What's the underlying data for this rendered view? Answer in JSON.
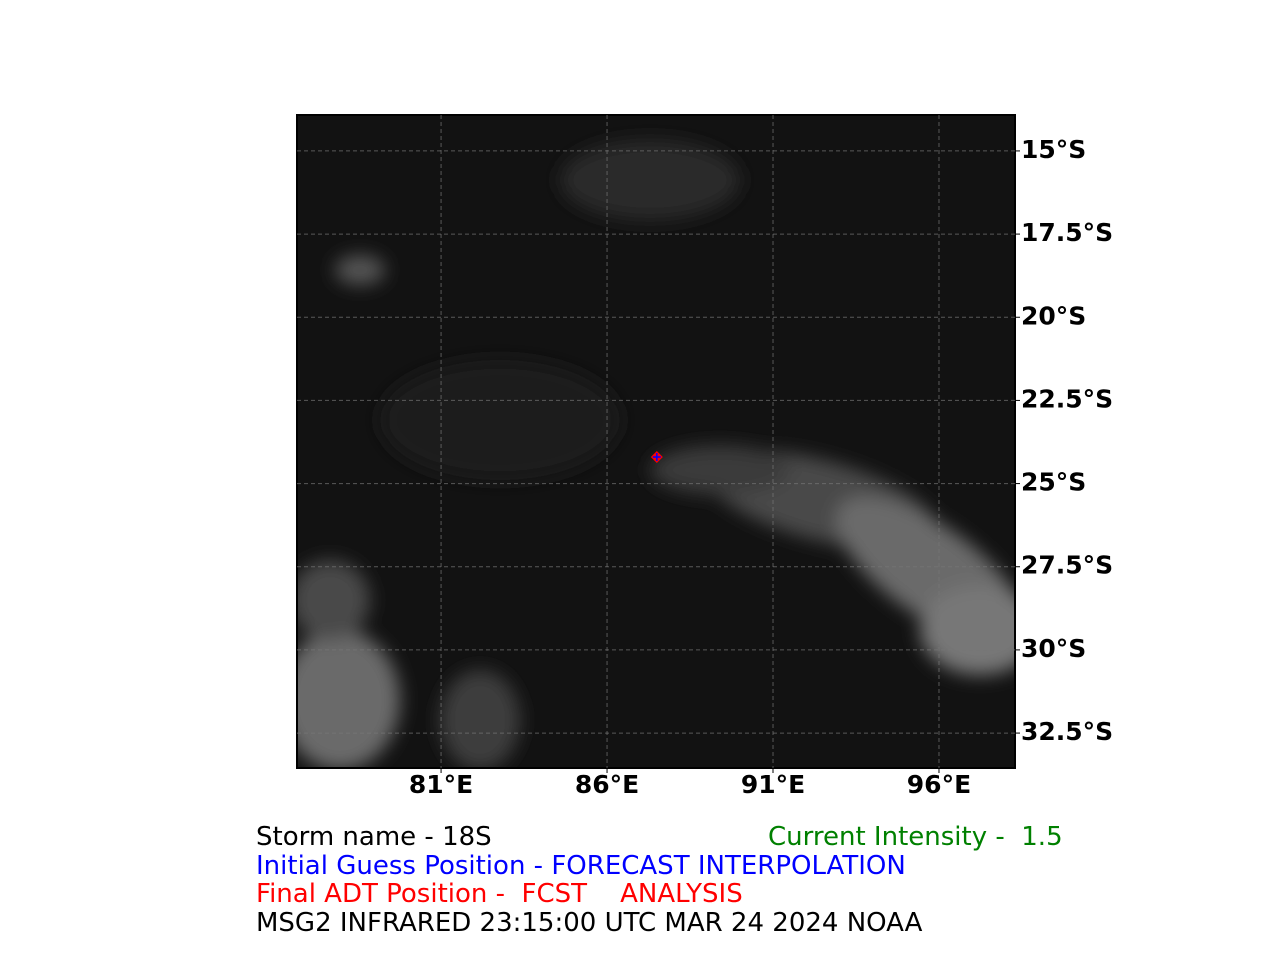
{
  "map": {
    "xlim": [
      76.66,
      98.29
    ],
    "ylim": [
      -33.55,
      -13.92
    ],
    "xticks": [
      {
        "value": 81,
        "label": "81°E"
      },
      {
        "value": 86,
        "label": "86°E"
      },
      {
        "value": 91,
        "label": "91°E"
      },
      {
        "value": 96,
        "label": "96°E"
      }
    ],
    "yticks": [
      {
        "value": -15,
        "label": "15°S"
      },
      {
        "value": -17.5,
        "label": "17.5°S"
      },
      {
        "value": -20,
        "label": "20°S"
      },
      {
        "value": -22.5,
        "label": "22.5°S"
      },
      {
        "value": -25,
        "label": "25°S"
      },
      {
        "value": -27.5,
        "label": "27.5°S"
      },
      {
        "value": -30,
        "label": "30°S"
      },
      {
        "value": -32.5,
        "label": "32.5°S"
      }
    ],
    "grid": true,
    "marker": {
      "lon": 87.5,
      "lat": -24.2,
      "color": "#ff0000",
      "cross_color": "#0000ff"
    }
  },
  "caption": {
    "storm_name": "Storm name - 18S",
    "intensity": "Current Intensity -  1.5",
    "initial_guess": "Initial Guess Position - FORECAST INTERPOLATION",
    "final_adt": "Final ADT Position -  FCST    ANALYSIS",
    "satellite": "MSG2 INFRARED 23:15:00 UTC MAR 24 2024 NOAA"
  }
}
